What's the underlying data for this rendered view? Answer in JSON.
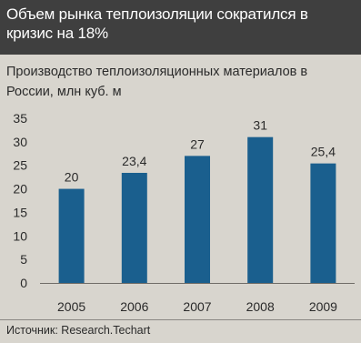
{
  "header": {
    "title": "Объем рынка теплоизоляции сократился в кризис на 18%"
  },
  "footer": {
    "source": "Источник: Research.Techart"
  },
  "colors": {
    "header_bg": "#3f3f3f",
    "panel_bg": "#d8d5ce",
    "bar": "#1a5f8e"
  },
  "chart_data": {
    "type": "bar",
    "title": "Производство теплоизоляционных материалов в России, млн куб. м",
    "categories": [
      "2005",
      "2006",
      "2007",
      "2008",
      "2009"
    ],
    "values": [
      20,
      23.4,
      27,
      31,
      25.4
    ],
    "value_labels": [
      "20",
      "23,4",
      "27",
      "31",
      "25,4"
    ],
    "y_ticks": [
      "0",
      "5",
      "10",
      "15",
      "20",
      "25",
      "30",
      "35"
    ],
    "ylim": [
      0,
      35
    ],
    "grid": false,
    "legend": "none"
  }
}
